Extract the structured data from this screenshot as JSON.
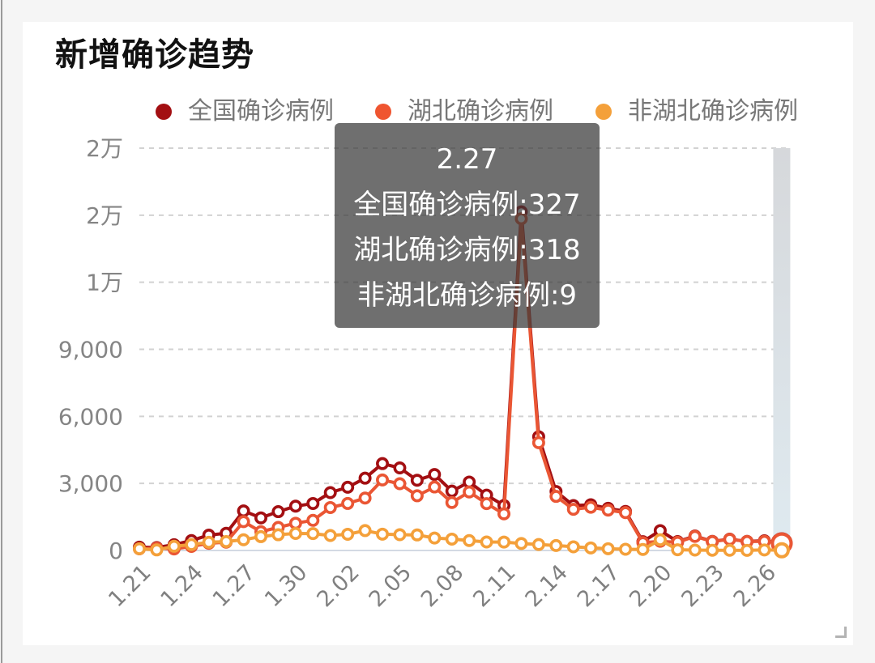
{
  "card": {
    "title": "新增确诊趋势"
  },
  "legend": [
    {
      "label": "全国确诊病例",
      "color": "#a30f12"
    },
    {
      "label": "湖北确诊病例",
      "color": "#ef5530"
    },
    {
      "label": "非湖北确诊病例",
      "color": "#f4a03a"
    }
  ],
  "tooltip": {
    "title": "2.27",
    "rows": [
      "全国确诊病例:327",
      "湖北确诊病例:318",
      "非湖北确诊病例:9"
    ]
  },
  "chart_data": {
    "type": "line",
    "title": "新增确诊趋势",
    "xlabel": "",
    "ylabel": "",
    "ylim": [
      0,
      18000
    ],
    "grid": true,
    "legend_position": "top",
    "y_ticks": [
      0,
      3000,
      6000,
      9000,
      12000,
      15000,
      18000
    ],
    "y_tick_labels": [
      "0",
      "3,000",
      "6,000",
      "9,000",
      "1万",
      "2万",
      "2万"
    ],
    "x_tick_labels": [
      "1.21",
      "1.24",
      "1.27",
      "1.30",
      "2.02",
      "2.05",
      "2.08",
      "2.11",
      "2.14",
      "2.17",
      "2.20",
      "2.23",
      "2.26"
    ],
    "categories": [
      "1.21",
      "1.22",
      "1.23",
      "1.24",
      "1.25",
      "1.26",
      "1.27",
      "1.28",
      "1.29",
      "1.30",
      "1.31",
      "2.01",
      "2.02",
      "2.03",
      "2.04",
      "2.05",
      "2.06",
      "2.07",
      "2.08",
      "2.09",
      "2.10",
      "2.11",
      "2.12",
      "2.13",
      "2.14",
      "2.15",
      "2.16",
      "2.17",
      "2.18",
      "2.19",
      "2.20",
      "2.21",
      "2.22",
      "2.23",
      "2.24",
      "2.25",
      "2.26",
      "2.27"
    ],
    "series": [
      {
        "name": "全国确诊病例",
        "color": "#a30f12",
        "values": [
          149,
          131,
          259,
          444,
          688,
          769,
          1771,
          1459,
          1737,
          1982,
          2102,
          2590,
          2829,
          3235,
          3887,
          3694,
          3143,
          3399,
          2656,
          3062,
          2478,
          2015,
          15152,
          5090,
          2641,
          2008,
          2048,
          1886,
          1749,
          394,
          889,
          397,
          648,
          409,
          508,
          406,
          433,
          327
        ]
      },
      {
        "name": "湖北确诊病例",
        "color": "#ea5634",
        "values": [
          72,
          105,
          70,
          180,
          323,
          371,
          1291,
          840,
          1032,
          1220,
          1347,
          1921,
          2103,
          2345,
          3156,
          2987,
          2447,
          2841,
          2147,
          2618,
          2097,
          1638,
          14840,
          4823,
          2420,
          1843,
          1933,
          1807,
          1693,
          349,
          411,
          366,
          630,
          398,
          499,
          401,
          409,
          318
        ]
      },
      {
        "name": "非湖北确诊病例",
        "color": "#f4a03a",
        "values": [
          77,
          26,
          189,
          264,
          365,
          398,
          480,
          619,
          705,
          762,
          755,
          669,
          726,
          890,
          731,
          707,
          696,
          558,
          509,
          444,
          381,
          377,
          312,
          267,
          221,
          165,
          115,
          79,
          56,
          45,
          478,
          31,
          18,
          11,
          9,
          5,
          24,
          9
        ]
      }
    ],
    "highlighted_category": "2.27"
  }
}
